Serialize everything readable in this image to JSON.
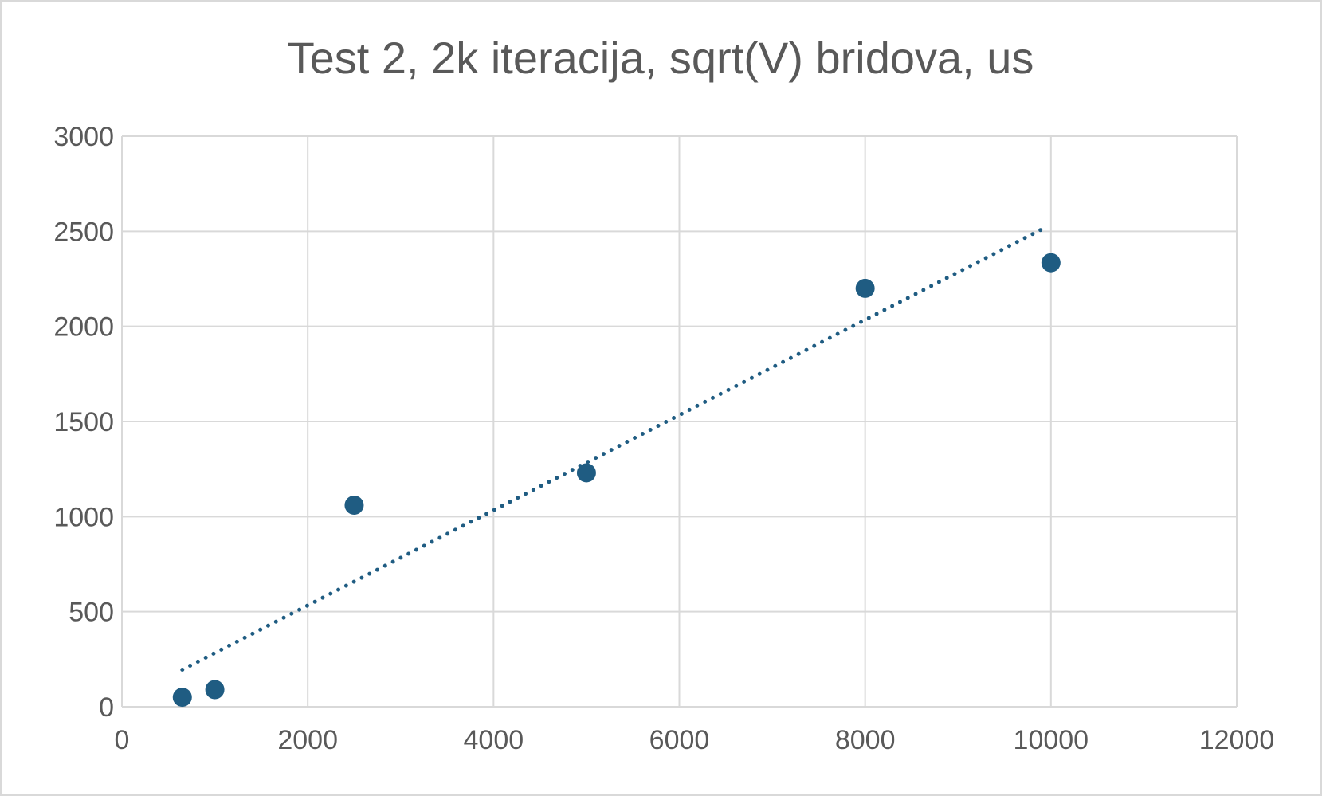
{
  "chart_data": {
    "type": "scatter",
    "title": "Test 2, 2k iteracija, sqrt(V) bridova, us",
    "xlabel": "",
    "ylabel": "",
    "xlim": [
      0,
      12000
    ],
    "ylim": [
      0,
      3000
    ],
    "x_ticks": [
      0,
      2000,
      4000,
      6000,
      8000,
      10000,
      12000
    ],
    "y_ticks": [
      0,
      500,
      1000,
      1500,
      2000,
      2500,
      3000
    ],
    "grid": true,
    "legend": "none",
    "series": [
      {
        "color": "#1F5C82",
        "points": [
          {
            "x": 650,
            "y": 50
          },
          {
            "x": 1000,
            "y": 90
          },
          {
            "x": 2500,
            "y": 1060
          },
          {
            "x": 5000,
            "y": 1230
          },
          {
            "x": 8000,
            "y": 2200
          },
          {
            "x": 10000,
            "y": 2335
          }
        ],
        "trendline": {
          "type": "linear",
          "style": "dotted",
          "from": {
            "x": 650,
            "y": 195
          },
          "to": {
            "x": 9900,
            "y": 2510
          }
        }
      }
    ],
    "colors": {
      "grid": "#D9D9D9",
      "text": "#595959",
      "border": "#D9D9D9"
    }
  }
}
